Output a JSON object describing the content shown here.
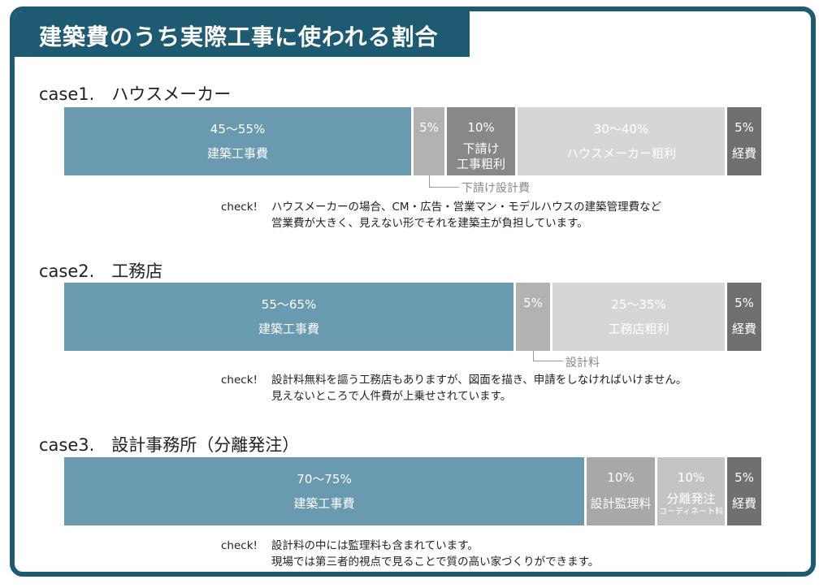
{
  "title": "建築費のうち実際工事に使われる割合",
  "chart_data": [
    {
      "type": "bar",
      "title": "case1.　ハウスメーカー",
      "segments": [
        {
          "value_label": "45〜55%",
          "label": "建築工事費",
          "value_range": [
            45,
            55
          ],
          "color": "#6a9ab0"
        },
        {
          "value_label": "5%",
          "label": "",
          "value": 5,
          "color": "#b2b2b2"
        },
        {
          "value_label": "10%",
          "label": "下請け\n工事粗利",
          "value": 10,
          "color": "#888888"
        },
        {
          "value_label": "30〜40%",
          "label": "ハウスメーカー粗利",
          "value_range": [
            30,
            40
          ],
          "color": "#d6d6d6"
        },
        {
          "value_label": "5%",
          "label": "経費",
          "value": 5,
          "color": "#707070"
        }
      ],
      "callout": "下請け設計費",
      "check": [
        "check!",
        "ハウスメーカーの場合、CM・広告・営業マン・モデルハウスの建築管理費など",
        "営業費が大きく、見えない形でそれを建築主が負担しています。"
      ]
    },
    {
      "type": "bar",
      "title": "case2.　工務店",
      "segments": [
        {
          "value_label": "55〜65%",
          "label": "建築工事費",
          "value_range": [
            55,
            65
          ],
          "color": "#6a9ab0"
        },
        {
          "value_label": "5%",
          "label": "",
          "value": 5,
          "color": "#b2b2b2"
        },
        {
          "value_label": "25〜35%",
          "label": "工務店粗利",
          "value_range": [
            25,
            35
          ],
          "color": "#d6d6d6"
        },
        {
          "value_label": "5%",
          "label": "経費",
          "value": 5,
          "color": "#707070"
        }
      ],
      "callout": "設計料",
      "check": [
        "check!",
        "設計料無料を謳う工務店もありますが、図面を描き、申請をしなければいけません。",
        "見えないところで人件費が上乗せされています。"
      ]
    },
    {
      "type": "bar",
      "title": "case3.　設計事務所（分離発注）",
      "segments": [
        {
          "value_label": "70〜75%",
          "label": "建築工事費",
          "value_range": [
            70,
            75
          ],
          "color": "#6a9ab0"
        },
        {
          "value_label": "10%",
          "label": "設計監理料",
          "value": 10,
          "color": "#a8a8a8"
        },
        {
          "value_label": "10%",
          "label": "分離発注",
          "sublabel": "コーディネート料",
          "value": 10,
          "color": "#c4c4c4"
        },
        {
          "value_label": "5%",
          "label": "経費",
          "value": 5,
          "color": "#707070"
        }
      ],
      "callout": "",
      "check": [
        "check!",
        "設計料の中には監理料も含まれています。",
        "現場では第三者的視点で見ることで質の高い家づくりができます。"
      ]
    }
  ]
}
